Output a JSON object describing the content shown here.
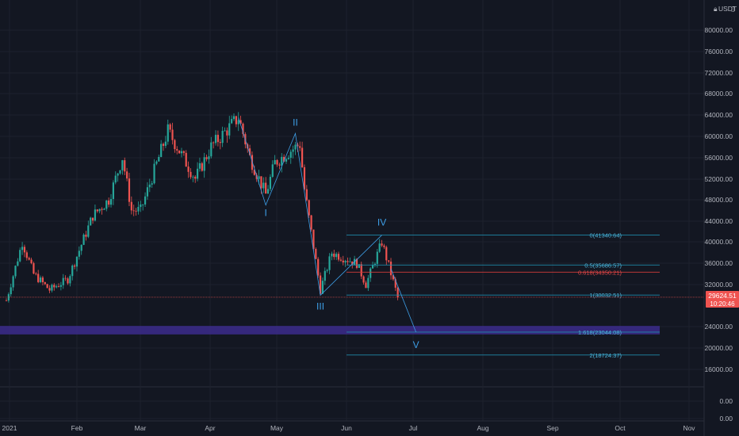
{
  "chart_data": {
    "type": "candlestick",
    "currency_label": "USDT",
    "currency_icon": "lock-icon",
    "y_ticks": [
      "80000.00",
      "76000.00",
      "72000.00",
      "68000.00",
      "64000.00",
      "60000.00",
      "56000.00",
      "52000.00",
      "48000.00",
      "44000.00",
      "40000.00",
      "36000.00",
      "32000.00",
      "24000.00",
      "20000.00",
      "16000.00",
      "0.00",
      "0.00"
    ],
    "x_ticks": [
      "2021",
      "Feb",
      "Mar",
      "Apr",
      "May",
      "Jun",
      "Jul",
      "Aug",
      "Sep",
      "Oct",
      "Nov"
    ],
    "last_price": "29624.51",
    "countdown": "10:20:46",
    "price_path": [
      [
        "2021-01-01",
        29000
      ],
      [
        "2021-01-08",
        40000
      ],
      [
        "2021-01-13",
        34000
      ],
      [
        "2021-01-20",
        31000
      ],
      [
        "2021-01-28",
        33000
      ],
      [
        "2021-02-08",
        45000
      ],
      [
        "2021-02-15",
        48000
      ],
      [
        "2021-02-21",
        56000
      ],
      [
        "2021-02-25",
        46000
      ],
      [
        "2021-03-01",
        46000
      ],
      [
        "2021-03-13",
        61000
      ],
      [
        "2021-03-25",
        52000
      ],
      [
        "2021-04-01",
        58000
      ],
      [
        "2021-04-13",
        63500
      ],
      [
        "2021-04-18",
        56000
      ],
      [
        "2021-04-25",
        49000
      ],
      [
        "2021-04-29",
        55000
      ],
      [
        "2021-05-05",
        57000
      ],
      [
        "2021-05-10",
        58500
      ],
      [
        "2021-05-12",
        50000
      ],
      [
        "2021-05-19",
        31000
      ],
      [
        "2021-05-24",
        38000
      ],
      [
        "2021-06-04",
        36000
      ],
      [
        "2021-06-08",
        32000
      ],
      [
        "2021-06-15",
        40000
      ],
      [
        "2021-06-22",
        29624
      ]
    ],
    "colors": {
      "bull": "#26a69a",
      "bear": "#ef5350",
      "wave": "#3d9ee6",
      "fib_line": "#1e88a8",
      "fib_0618": "#d23b3b",
      "zone": "#3c2c8c",
      "current_price": "#ef5350"
    },
    "elliott_waves": [
      {
        "label": "I",
        "date": "2021-04-25",
        "price": 47000
      },
      {
        "label": "II",
        "date": "2021-05-08",
        "price": 60500
      },
      {
        "label": "III",
        "date": "2021-05-19",
        "price": 30000
      },
      {
        "label": "IV",
        "date": "2021-06-15",
        "price": 41340
      },
      {
        "label": "V",
        "date": "2021-06-30",
        "price": 23044
      }
    ],
    "fib_levels": [
      {
        "label": "0(41340.64)",
        "price": 41340.64,
        "highlight": false
      },
      {
        "label": "0.5(35686.57)",
        "price": 35686.57,
        "highlight": false
      },
      {
        "label": "0.618(34350.21)",
        "price": 34350.21,
        "highlight": true
      },
      {
        "label": "1(30032.51)",
        "price": 30032.51,
        "highlight": false
      },
      {
        "label": "1.618(23044.08)",
        "price": 23044.08,
        "highlight": false
      },
      {
        "label": "2(18724.37)",
        "price": 18724.37,
        "highlight": false
      }
    ],
    "support_zone": [
      22600,
      24200
    ]
  }
}
